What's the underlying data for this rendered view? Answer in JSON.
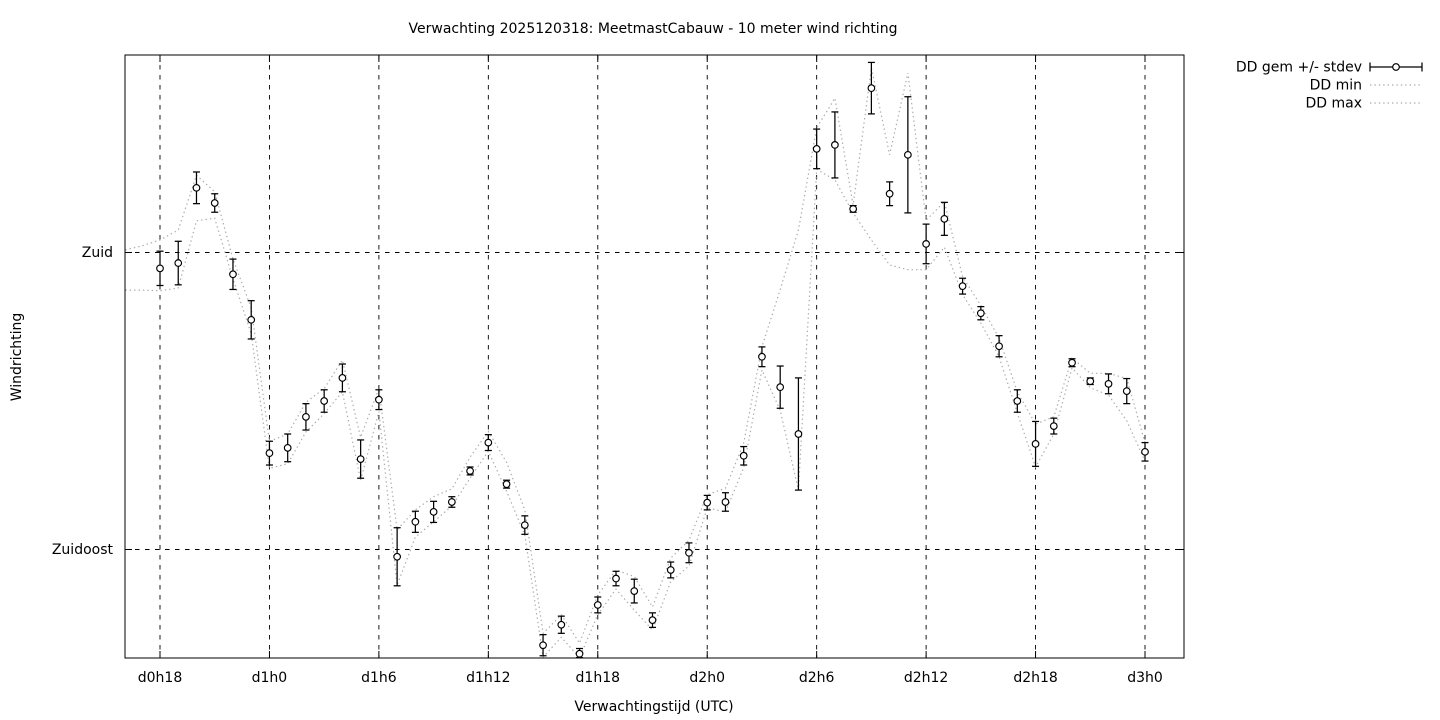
{
  "title": "Verwachting 2025120318: MeetmastCabauw - 10 meter wind richting",
  "axes": {
    "xlabel": "Verwachtingstijd (UTC)",
    "ylabel": "Windrichting"
  },
  "legend": {
    "items": [
      {
        "label": "DD gem +/- stdev",
        "style": "points-with-errorbars",
        "color": "#000000"
      },
      {
        "label": "DD min",
        "style": "dotted-line",
        "color": "#ababab"
      },
      {
        "label": "DD max",
        "style": "dotted-line",
        "color": "#ababab"
      }
    ]
  },
  "colors": {
    "foreground": "#000000",
    "background": "#ffffff",
    "minmax_line": "#ababab",
    "grid": "#000000"
  },
  "chart_data": {
    "type": "line",
    "subtype": "scatter-errorbars-with-minmax-band",
    "title": "Verwachting 2025120318: MeetmastCabauw - 10 meter wind richting",
    "xlabel": "Verwachtingstijd (UTC)",
    "ylabel": "Windrichting",
    "grid": true,
    "legend_position": "outside-top-right",
    "x_unit": "forecast hour (UTC)",
    "y_unit": "wind direction (degrees)",
    "x_range_hours": [
      16.1,
      74.1
    ],
    "y_range_degrees": [
      118.6,
      209.9
    ],
    "x_ticks": [
      {
        "hour": 18,
        "label": "d0h18"
      },
      {
        "hour": 24,
        "label": "d1h0"
      },
      {
        "hour": 30,
        "label": "d1h6"
      },
      {
        "hour": 36,
        "label": "d1h12"
      },
      {
        "hour": 42,
        "label": "d1h18"
      },
      {
        "hour": 48,
        "label": "d2h0"
      },
      {
        "hour": 54,
        "label": "d2h6"
      },
      {
        "hour": 60,
        "label": "d2h12"
      },
      {
        "hour": 66,
        "label": "d2h18"
      },
      {
        "hour": 72,
        "label": "d3h0"
      }
    ],
    "y_ticks": [
      {
        "deg": 180,
        "label": "Zuid"
      },
      {
        "deg": 135,
        "label": "Zuidoost"
      }
    ],
    "series": [
      {
        "name": "DD gem +/- stdev",
        "type": "scatter-errorbars",
        "x_hours": [
          18,
          19,
          20,
          21,
          22,
          23,
          24,
          25,
          26,
          27,
          28,
          29,
          30,
          31,
          32,
          33,
          34,
          35,
          36,
          37,
          38,
          39,
          40,
          41,
          42,
          43,
          44,
          45,
          46,
          47,
          48,
          49,
          50,
          51,
          52,
          53,
          54,
          55,
          56,
          57,
          58,
          59,
          60,
          61,
          62,
          63,
          64,
          65,
          66,
          67,
          68,
          69,
          70,
          71,
          72
        ],
        "mean_deg": [
          177.6,
          178.4,
          189.8,
          187.5,
          176.7,
          169.8,
          149.6,
          150.4,
          155.1,
          157.5,
          161.0,
          148.7,
          157.7,
          133.9,
          139.2,
          140.7,
          142.2,
          146.9,
          151.2,
          144.9,
          138.7,
          120.5,
          123.6,
          119.2,
          126.6,
          130.6,
          128.7,
          124.3,
          131.9,
          134.5,
          142.1,
          142.2,
          149.2,
          164.2,
          159.6,
          152.5,
          195.7,
          196.3,
          186.6,
          204.9,
          188.9,
          194.8,
          181.3,
          185.1,
          174.9,
          170.8,
          165.8,
          157.5,
          151.0,
          153.7,
          163.3,
          160.5,
          160.1,
          159.0,
          149.8
        ],
        "stdev_deg": [
          2.6,
          3.3,
          2.4,
          1.4,
          2.3,
          2.9,
          1.8,
          2.1,
          2.0,
          1.7,
          2.1,
          2.9,
          1.5,
          4.4,
          1.6,
          1.6,
          0.8,
          0.6,
          1.2,
          0.6,
          1.4,
          1.6,
          1.3,
          0.8,
          1.2,
          1.1,
          1.8,
          1.1,
          1.2,
          1.5,
          1.1,
          1.4,
          1.4,
          1.5,
          3.2,
          8.5,
          3.0,
          5.0,
          0.5,
          3.9,
          1.8,
          8.8,
          3.0,
          2.5,
          1.2,
          1.0,
          1.6,
          1.7,
          3.4,
          1.2,
          0.6,
          0.5,
          1.5,
          1.9,
          1.4
        ]
      },
      {
        "name": "DD min",
        "type": "dotted-line",
        "x_hours": [
          16.1,
          17,
          18,
          19,
          20,
          21,
          22,
          23,
          24,
          25,
          26,
          27,
          28,
          29,
          30,
          31,
          32,
          33,
          34,
          35,
          36,
          37,
          38,
          39,
          40,
          41,
          42,
          43,
          44,
          45,
          46,
          47,
          48,
          49,
          50,
          51,
          52,
          53,
          54,
          55,
          56,
          57,
          58,
          59,
          60,
          61,
          62,
          63,
          64,
          65,
          66,
          67,
          68,
          69,
          70,
          71,
          72
        ],
        "deg": [
          174.3,
          174.3,
          174.2,
          174.6,
          184.8,
          185.2,
          176.0,
          167.7,
          147.3,
          148.0,
          152.8,
          155.6,
          158.9,
          145.5,
          155.9,
          129.6,
          136.9,
          139.2,
          141.6,
          145.8,
          149.9,
          143.8,
          137.2,
          118.7,
          121.7,
          118.6,
          125.1,
          129.0,
          125.8,
          122.8,
          130.1,
          132.5,
          141.3,
          140.7,
          147.4,
          162.2,
          156.1,
          144.0,
          192.6,
          191.0,
          186.0,
          181.9,
          178.1,
          177.4,
          177.4,
          180.8,
          173.6,
          169.3,
          164.2,
          155.7,
          147.5,
          152.5,
          162.5,
          159.5,
          158.4,
          154.5,
          148.4
        ]
      },
      {
        "name": "DD max",
        "type": "dotted-line",
        "x_hours": [
          16.1,
          17,
          18,
          19,
          20,
          21,
          22,
          23,
          24,
          25,
          26,
          27,
          28,
          29,
          30,
          31,
          32,
          33,
          34,
          35,
          36,
          37,
          38,
          39,
          40,
          41,
          42,
          43,
          44,
          45,
          46,
          47,
          48,
          49,
          50,
          51,
          52,
          53,
          54,
          55,
          56,
          57,
          58,
          59,
          60,
          61,
          62,
          63,
          64,
          65,
          66,
          67,
          68,
          69,
          70,
          71,
          72
        ],
        "deg": [
          180.4,
          181.0,
          181.9,
          183.4,
          191.7,
          189.2,
          179.0,
          171.6,
          151.4,
          152.5,
          157.3,
          159.4,
          163.7,
          152.0,
          159.4,
          138.0,
          141.0,
          143.0,
          144.2,
          149.0,
          152.9,
          148.2,
          141.0,
          122.3,
          125.1,
          120.8,
          128.1,
          131.9,
          130.9,
          126.3,
          133.7,
          136.4,
          143.3,
          144.3,
          151.1,
          165.7,
          174.4,
          183.4,
          198.9,
          203.4,
          187.2,
          208.0,
          194.8,
          207.2,
          184.9,
          187.7,
          176.3,
          172.0,
          167.0,
          158.9,
          154.0,
          155.1,
          164.0,
          161.7,
          161.7,
          160.9,
          151.2
        ]
      }
    ]
  }
}
